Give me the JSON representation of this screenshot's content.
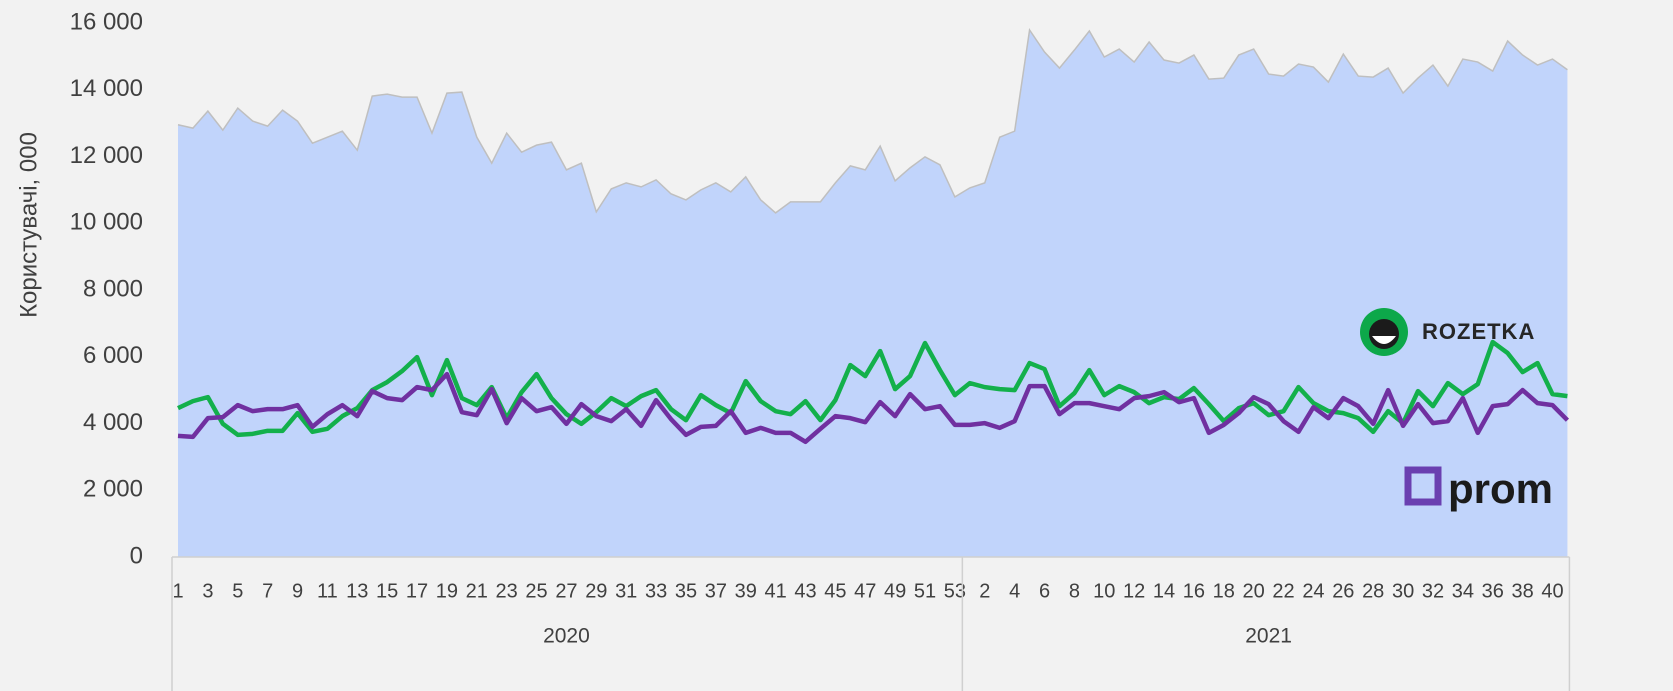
{
  "chart_data": {
    "type": "area_line",
    "y_axis_label": "Користувачі, 000",
    "groups": [
      {
        "label": "2020",
        "categories": [
          "1",
          null,
          "3",
          null,
          "5",
          null,
          "7",
          null,
          "9",
          null,
          "11",
          null,
          "13",
          null,
          "15",
          null,
          "17",
          null,
          "19",
          null,
          "21",
          null,
          "23",
          null,
          "25",
          null,
          "27",
          null,
          "29",
          null,
          "31",
          null,
          "33",
          null,
          "35",
          null,
          "37",
          null,
          "39",
          null,
          "41",
          null,
          "43",
          null,
          "45",
          null,
          "47",
          null,
          "49",
          null,
          "51",
          null,
          "53"
        ]
      },
      {
        "label": "2021",
        "categories": [
          null,
          "2",
          null,
          "4",
          null,
          "6",
          null,
          "8",
          null,
          "10",
          null,
          "12",
          null,
          "14",
          null,
          "16",
          null,
          "18",
          null,
          "20",
          null,
          "22",
          null,
          "24",
          null,
          "26",
          null,
          "28",
          null,
          "30",
          null,
          "32",
          null,
          "34",
          null,
          "36",
          null,
          "38",
          null,
          "40",
          null
        ]
      }
    ],
    "series": [
      {
        "kind": "area",
        "color": "#c1d4fb",
        "line_color": "#bfbfbf",
        "values": [
          12950,
          12850,
          13360,
          12790,
          13450,
          13060,
          12910,
          13390,
          13060,
          12400,
          12580,
          12760,
          12190,
          13810,
          13870,
          13780,
          13780,
          12700,
          13900,
          13930,
          12580,
          11800,
          12700,
          12130,
          12340,
          12430,
          11600,
          11800,
          10340,
          11030,
          11210,
          11090,
          11300,
          10880,
          10700,
          11000,
          11210,
          10940,
          11390,
          10700,
          10310,
          10640,
          10640,
          10640,
          11210,
          11720,
          11600,
          12310,
          11270,
          11660,
          11990,
          11750,
          10790,
          11060,
          11210,
          12580,
          12760,
          15790,
          15130,
          14650,
          15190,
          15760,
          14980,
          15220,
          14830,
          15430,
          14890,
          14800,
          15040,
          14320,
          14350,
          15040,
          15220,
          14470,
          14410,
          14770,
          14680,
          14230,
          15070,
          14410,
          14380,
          14650,
          13900,
          14350,
          14740,
          14110,
          14920,
          14830,
          14560,
          15460,
          15040,
          14740,
          14920,
          14600
        ]
      },
      {
        "kind": "line",
        "name": "ROZETKA",
        "color": "#13b04b",
        "values": [
          4460,
          4670,
          4790,
          3990,
          3660,
          3690,
          3780,
          3780,
          4310,
          3750,
          3840,
          4220,
          4460,
          5000,
          5240,
          5570,
          5990,
          4850,
          5900,
          4760,
          4550,
          5090,
          4160,
          4940,
          5480,
          4760,
          4280,
          3990,
          4340,
          4760,
          4520,
          4820,
          5000,
          4430,
          4100,
          4850,
          4550,
          4310,
          5270,
          4670,
          4370,
          4280,
          4670,
          4100,
          4700,
          5750,
          5420,
          6170,
          5030,
          5420,
          6410,
          5600,
          4850,
          5210,
          5090,
          5030,
          5000,
          5810,
          5630,
          4520,
          4910,
          5600,
          4850,
          5120,
          4940,
          4610,
          4790,
          4730,
          5060,
          4580,
          4070,
          4460,
          4610,
          4250,
          4370,
          5090,
          4610,
          4370,
          4310,
          4160,
          3750,
          4370,
          4010,
          4970,
          4520,
          5210,
          4880,
          5180,
          6440,
          6110,
          5540,
          5810,
          4880,
          4820
        ]
      },
      {
        "kind": "line",
        "name": "prom",
        "color": "#7030a0",
        "values": [
          3630,
          3600,
          4160,
          4190,
          4550,
          4370,
          4430,
          4430,
          4550,
          3900,
          4280,
          4550,
          4220,
          4970,
          4760,
          4700,
          5090,
          5000,
          5480,
          4340,
          4250,
          5030,
          4010,
          4760,
          4370,
          4490,
          3990,
          4580,
          4220,
          4070,
          4430,
          3930,
          4700,
          4130,
          3660,
          3900,
          3930,
          4370,
          3720,
          3870,
          3720,
          3720,
          3450,
          3840,
          4220,
          4160,
          4040,
          4640,
          4220,
          4880,
          4430,
          4520,
          3960,
          3960,
          4010,
          3870,
          4070,
          5120,
          5120,
          4280,
          4610,
          4610,
          4520,
          4430,
          4760,
          4820,
          4940,
          4640,
          4760,
          3720,
          3960,
          4310,
          4790,
          4580,
          4070,
          3750,
          4490,
          4160,
          4760,
          4520,
          3990,
          5000,
          3930,
          4580,
          4010,
          4070,
          4760,
          3720,
          4520,
          4580,
          5000,
          4610,
          4550,
          4100
        ]
      }
    ],
    "ylim": [
      0,
      16000
    ],
    "yticks": [
      0,
      {
        "value": 2000,
        "label": "2 000"
      },
      {
        "value": 4000,
        "label": "4 000"
      },
      {
        "value": 6000,
        "label": "6 000"
      },
      {
        "value": 8000,
        "label": "8 000"
      },
      {
        "value": 10000,
        "label": "10 000"
      },
      {
        "value": 12000,
        "label": "12 000"
      },
      {
        "value": 14000,
        "label": "14 000"
      },
      {
        "value": 16000,
        "label": "16 000"
      }
    ],
    "grid": false
  }
}
